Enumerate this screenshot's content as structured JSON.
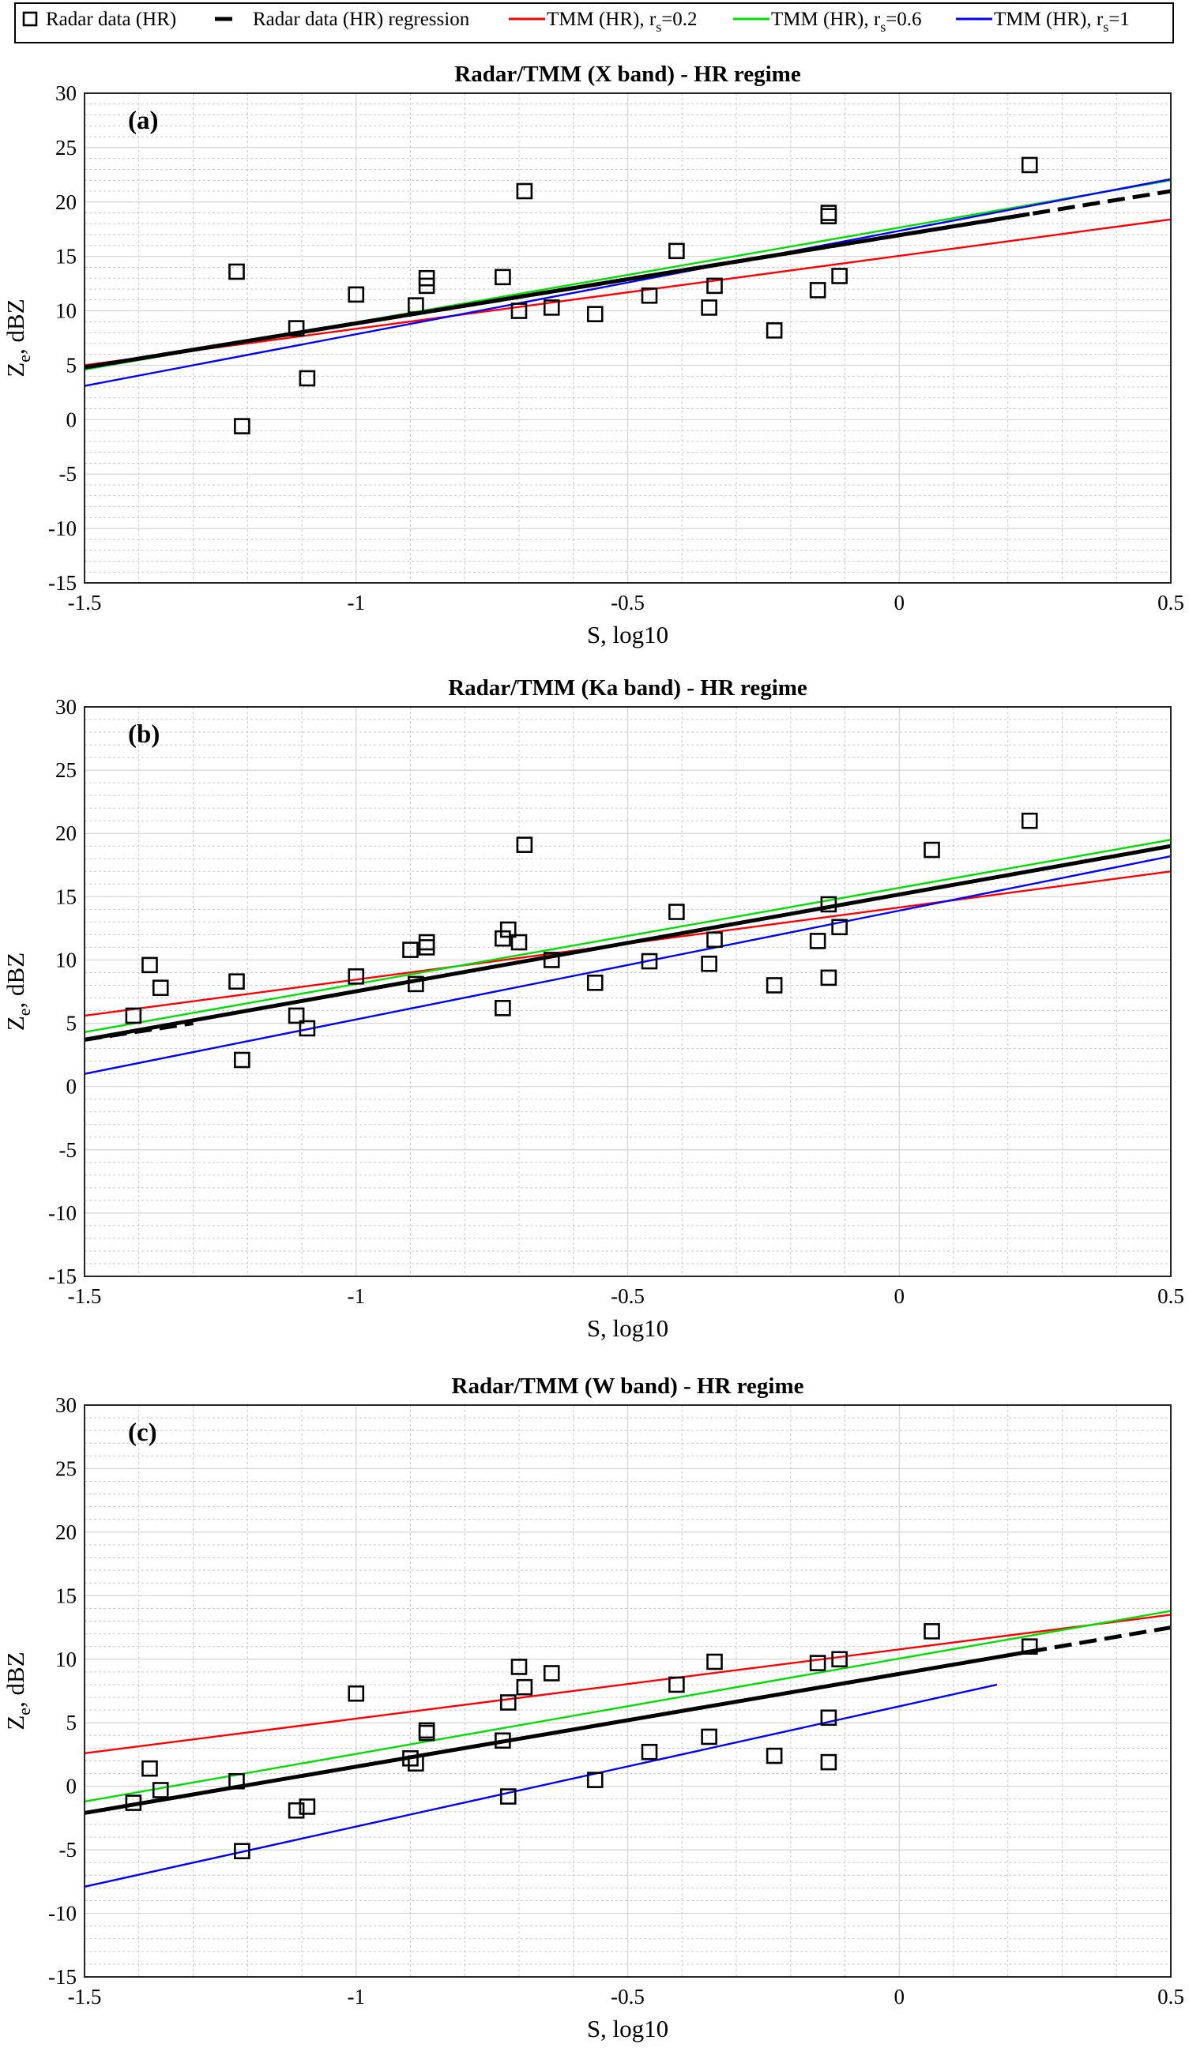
{
  "legend": {
    "entries": [
      {
        "label": "Radar data (HR)",
        "kind": "marker"
      },
      {
        "label": "Radar data (HR) regression",
        "kind": "dash",
        "color": "#000000"
      },
      {
        "label": "TMM (HR), r",
        "sub": "s",
        "suffix": "=0.2",
        "kind": "line",
        "color": "#ff0000"
      },
      {
        "label": "TMM (HR), r",
        "sub": "s",
        "suffix": "=0.6",
        "kind": "line",
        "color": "#00e000"
      },
      {
        "label": "TMM (HR), r",
        "sub": "s",
        "suffix": "=1",
        "kind": "line",
        "color": "#0000ff"
      }
    ]
  },
  "chart_data": [
    {
      "type": "scatter",
      "letter": "(a)",
      "title": "Radar/TMM (X band) - HR regime",
      "xlabel": "S, log10",
      "ylabel": "Z",
      "ylabel_sub": "e",
      "ylabel_suffix": ", dBZ",
      "xlim": [
        -1.5,
        0.5
      ],
      "ylim": [
        -15,
        30
      ],
      "xticks": [
        -1.5,
        -1,
        -0.5,
        0,
        0.5
      ],
      "xtick_labels": [
        "-1.5",
        "-1",
        "-0.5",
        "0",
        "0.5"
      ],
      "yticks": [
        -15,
        -10,
        -5,
        0,
        5,
        10,
        15,
        20,
        25,
        30
      ],
      "ytick_labels": [
        "-15",
        "-10",
        "-5",
        "0",
        "5",
        "10",
        "15",
        "20",
        "25",
        "30"
      ],
      "grid": true,
      "points": [
        [
          -1.22,
          13.6
        ],
        [
          -1.21,
          -0.6
        ],
        [
          -1.11,
          8.4
        ],
        [
          -1.09,
          3.8
        ],
        [
          -1.0,
          11.5
        ],
        [
          -0.89,
          10.5
        ],
        [
          -0.87,
          13.0
        ],
        [
          -0.87,
          12.3
        ],
        [
          -0.73,
          13.1
        ],
        [
          -0.7,
          10.0
        ],
        [
          -0.69,
          21.0
        ],
        [
          -0.64,
          10.3
        ],
        [
          -0.56,
          9.7
        ],
        [
          -0.46,
          11.4
        ],
        [
          -0.41,
          15.5
        ],
        [
          -0.35,
          10.3
        ],
        [
          -0.34,
          12.3
        ],
        [
          -0.23,
          8.2
        ],
        [
          -0.15,
          11.9
        ],
        [
          -0.13,
          19.0
        ],
        [
          -0.13,
          18.7
        ],
        [
          -0.11,
          13.2
        ],
        [
          0.24,
          23.4
        ]
      ],
      "regression": {
        "solid": [
          [
            -1.5,
            4.8
          ],
          [
            0.24,
            18.9
          ]
        ],
        "dashed": [
          [
            -1.5,
            4.8
          ],
          [
            0.5,
            21.0
          ]
        ]
      },
      "tmm": [
        {
          "rs": "0.2",
          "color": "#ff0000",
          "x": [
            -1.5,
            0.5
          ],
          "y": [
            5.0,
            18.4
          ]
        },
        {
          "rs": "0.6",
          "color": "#00e000",
          "x": [
            -1.5,
            0.5
          ],
          "y": [
            4.6,
            22.0
          ]
        },
        {
          "rs": "1",
          "color": "#0000ff",
          "x": [
            -1.5,
            0.5
          ],
          "y": [
            3.1,
            22.1
          ]
        }
      ]
    },
    {
      "type": "scatter",
      "letter": "(b)",
      "title": "Radar/TMM (Ka band) - HR regime",
      "xlabel": "S, log10",
      "ylabel": "Z",
      "ylabel_sub": "e",
      "ylabel_suffix": ", dBZ",
      "xlim": [
        -1.5,
        0.5
      ],
      "ylim": [
        -15,
        30
      ],
      "xticks": [
        -1.5,
        -1,
        -0.5,
        0,
        0.5
      ],
      "xtick_labels": [
        "-1.5",
        "-1",
        "-0.5",
        "0",
        "0.5"
      ],
      "yticks": [
        -15,
        -10,
        -5,
        0,
        5,
        10,
        15,
        20,
        25,
        30
      ],
      "ytick_labels": [
        "-15",
        "-10",
        "-5",
        "0",
        "5",
        "10",
        "15",
        "20",
        "25",
        "30"
      ],
      "grid": true,
      "points": [
        [
          -1.41,
          5.6
        ],
        [
          -1.38,
          9.6
        ],
        [
          -1.36,
          7.8
        ],
        [
          -1.22,
          8.3
        ],
        [
          -1.21,
          2.1
        ],
        [
          -1.11,
          5.6
        ],
        [
          -1.09,
          4.6
        ],
        [
          -1.0,
          8.7
        ],
        [
          -0.9,
          10.8
        ],
        [
          -0.89,
          8.1
        ],
        [
          -0.87,
          11.0
        ],
        [
          -0.87,
          11.4
        ],
        [
          -0.73,
          11.7
        ],
        [
          -0.73,
          6.2
        ],
        [
          -0.72,
          12.4
        ],
        [
          -0.7,
          11.4
        ],
        [
          -0.69,
          19.1
        ],
        [
          -0.64,
          10.0
        ],
        [
          -0.56,
          8.2
        ],
        [
          -0.46,
          9.9
        ],
        [
          -0.41,
          13.8
        ],
        [
          -0.35,
          9.7
        ],
        [
          -0.34,
          11.6
        ],
        [
          -0.23,
          8.0
        ],
        [
          -0.15,
          11.5
        ],
        [
          -0.13,
          14.4
        ],
        [
          -0.13,
          8.6
        ],
        [
          -0.11,
          12.6
        ],
        [
          0.06,
          18.7
        ],
        [
          0.24,
          21.0
        ]
      ],
      "regression": {
        "solid": [
          [
            -1.5,
            3.7
          ],
          [
            0.5,
            19.0
          ]
        ],
        "dashed": [
          [
            -1.5,
            3.7
          ],
          [
            -1.3,
            5.0
          ]
        ]
      },
      "tmm": [
        {
          "rs": "0.2",
          "color": "#ff0000",
          "x": [
            -1.5,
            0.5
          ],
          "y": [
            5.6,
            17.0
          ]
        },
        {
          "rs": "0.6",
          "color": "#00e000",
          "x": [
            -1.5,
            0.5
          ],
          "y": [
            4.3,
            19.5
          ]
        },
        {
          "rs": "1",
          "color": "#0000ff",
          "x": [
            -1.5,
            0.5
          ],
          "y": [
            1.0,
            18.2
          ]
        }
      ]
    },
    {
      "type": "scatter",
      "letter": "(c)",
      "title": "Radar/TMM (W band) - HR regime",
      "xlabel": "S, log10",
      "ylabel": "Z",
      "ylabel_sub": "e",
      "ylabel_suffix": ", dBZ",
      "xlim": [
        -1.5,
        0.5
      ],
      "ylim": [
        -15,
        30
      ],
      "xticks": [
        -1.5,
        -1,
        -0.5,
        0,
        0.5
      ],
      "xtick_labels": [
        "-1.5",
        "-1",
        "-0.5",
        "0",
        "0.5"
      ],
      "yticks": [
        -15,
        -10,
        -5,
        0,
        5,
        10,
        15,
        20,
        25,
        30
      ],
      "ytick_labels": [
        "-15",
        "-10",
        "-5",
        "0",
        "5",
        "10",
        "15",
        "20",
        "25",
        "30"
      ],
      "grid": true,
      "points": [
        [
          -1.41,
          -1.3
        ],
        [
          -1.38,
          1.4
        ],
        [
          -1.36,
          -0.3
        ],
        [
          -1.22,
          0.4
        ],
        [
          -1.21,
          -5.1
        ],
        [
          -1.11,
          -1.9
        ],
        [
          -1.09,
          -1.6
        ],
        [
          -1.0,
          7.3
        ],
        [
          -0.9,
          2.2
        ],
        [
          -0.89,
          1.8
        ],
        [
          -0.87,
          4.2
        ],
        [
          -0.87,
          4.4
        ],
        [
          -0.73,
          3.6
        ],
        [
          -0.72,
          -0.8
        ],
        [
          -0.72,
          6.6
        ],
        [
          -0.7,
          9.4
        ],
        [
          -0.69,
          7.8
        ],
        [
          -0.64,
          8.9
        ],
        [
          -0.56,
          0.5
        ],
        [
          -0.46,
          2.7
        ],
        [
          -0.41,
          8.0
        ],
        [
          -0.34,
          9.8
        ],
        [
          -0.35,
          3.9
        ],
        [
          -0.23,
          2.4
        ],
        [
          -0.15,
          9.7
        ],
        [
          -0.13,
          5.4
        ],
        [
          -0.13,
          1.9
        ],
        [
          -0.11,
          10.0
        ],
        [
          0.06,
          12.2
        ],
        [
          0.24,
          11.0
        ]
      ],
      "regression": {
        "solid": [
          [
            -1.5,
            -2.1
          ],
          [
            0.24,
            10.6
          ]
        ],
        "dashed": [
          [
            0.24,
            10.6
          ],
          [
            0.5,
            12.5
          ]
        ]
      },
      "tmm": [
        {
          "rs": "0.2",
          "color": "#ff0000",
          "x": [
            -1.5,
            0.5
          ],
          "y": [
            2.6,
            13.5
          ]
        },
        {
          "rs": "0.6",
          "color": "#00e000",
          "x": [
            -1.5,
            0.5
          ],
          "y": [
            -1.2,
            13.8
          ]
        },
        {
          "rs": "1",
          "color": "#0000ff",
          "x": [
            -1.5,
            0.18
          ],
          "y": [
            -7.9,
            8.0
          ]
        }
      ]
    }
  ]
}
